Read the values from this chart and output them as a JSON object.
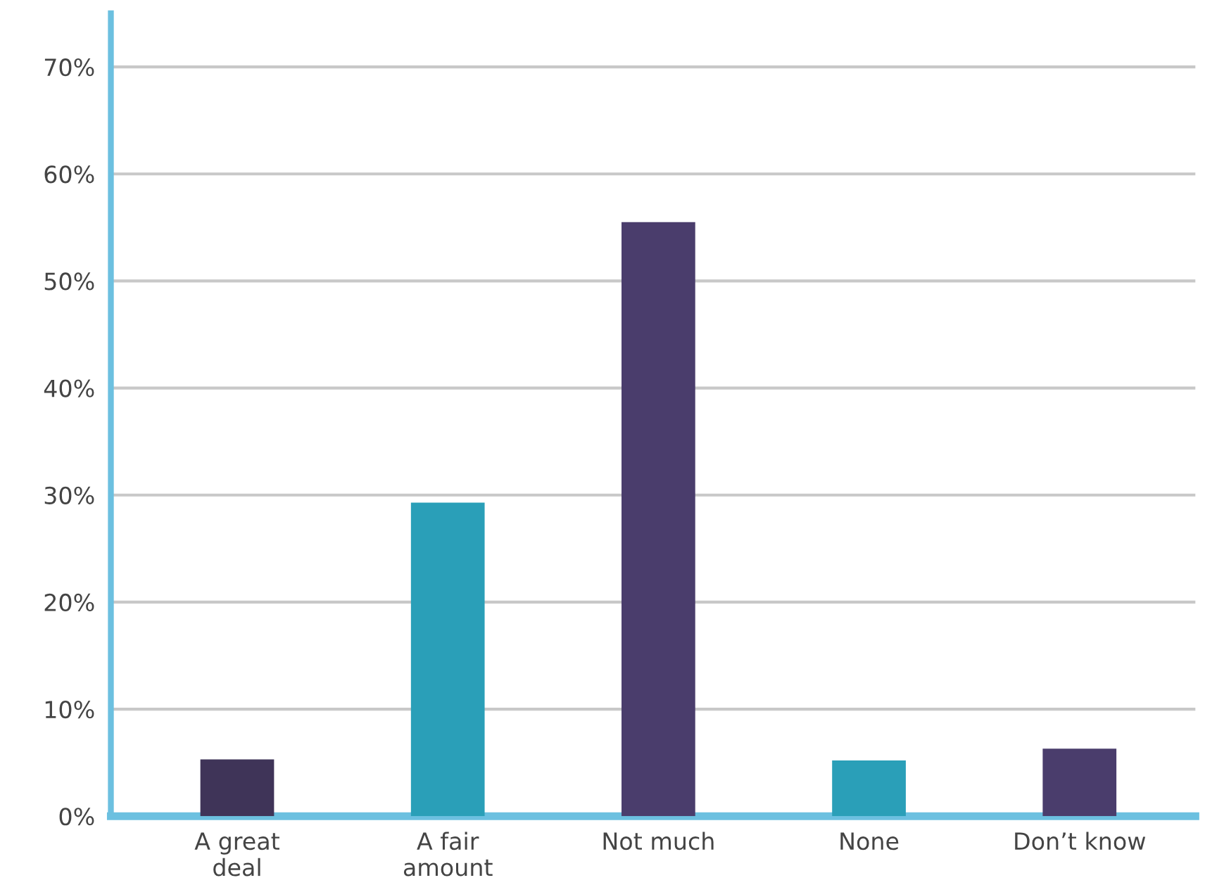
{
  "chart_data": {
    "type": "bar",
    "categories": [
      "A great\ndeal",
      "A fair\namount",
      "Not much",
      "None",
      "Don’t know"
    ],
    "values": [
      5.3,
      29.3,
      55.5,
      5.2,
      6.3
    ],
    "colors": [
      "#3f3458",
      "#2a9fb8",
      "#4a3d6c",
      "#2a9fb8",
      "#4a3d6c"
    ],
    "ylim": [
      0,
      75
    ],
    "yticks": [
      {
        "value": 0,
        "label": "0%"
      },
      {
        "value": 10,
        "label": "10%"
      },
      {
        "value": 20,
        "label": "20%"
      },
      {
        "value": 30,
        "label": "30%"
      },
      {
        "value": 40,
        "label": "40%"
      },
      {
        "value": 50,
        "label": "50%"
      },
      {
        "value": 60,
        "label": "60%"
      },
      {
        "value": 70,
        "label": "70%"
      }
    ],
    "grid": "y",
    "legend": false
  }
}
